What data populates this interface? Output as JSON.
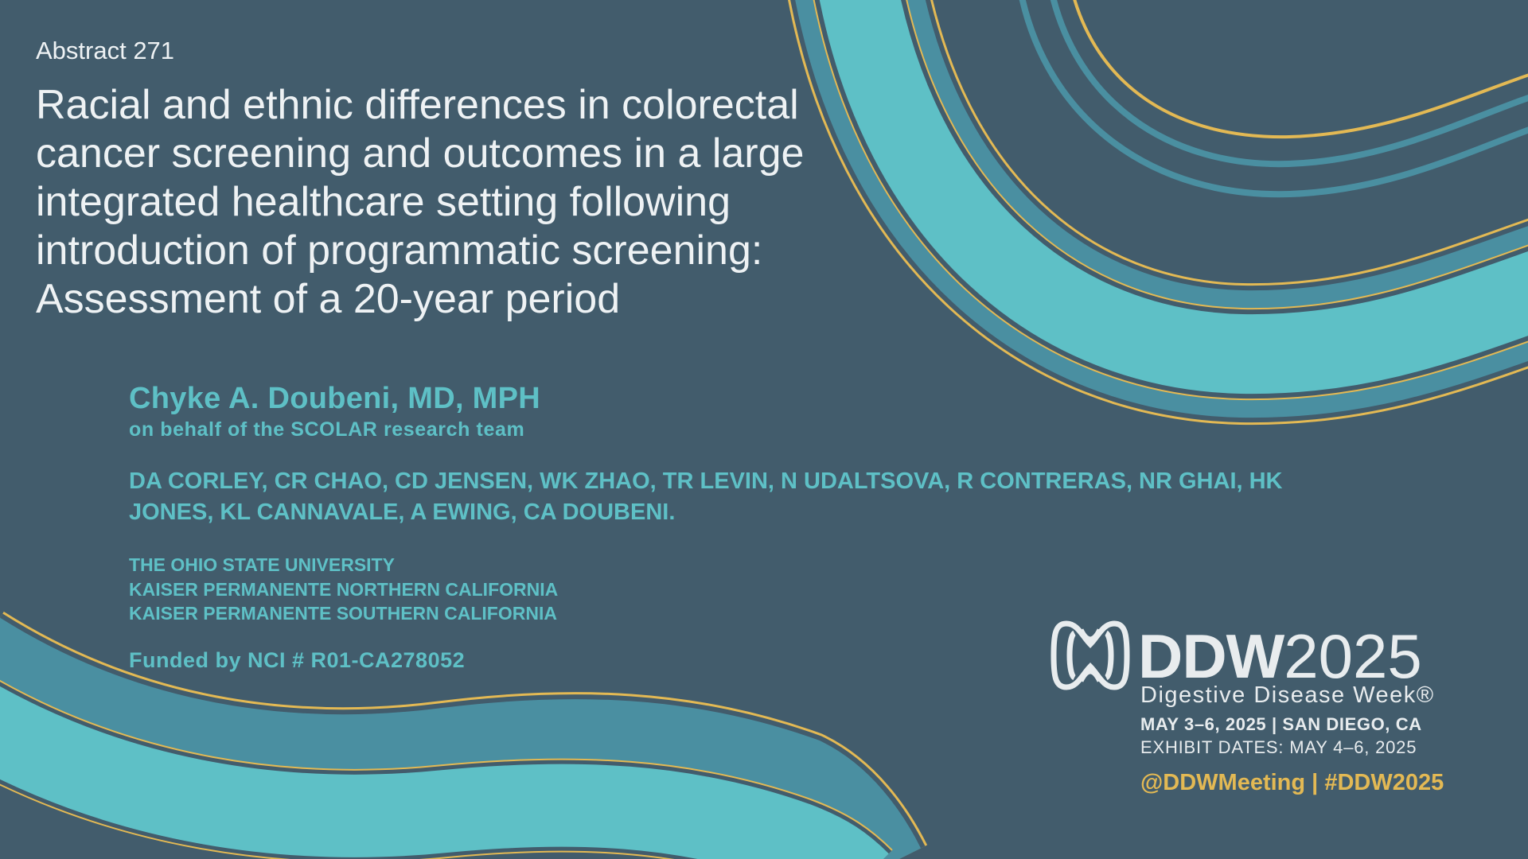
{
  "slide": {
    "abstract_label": "Abstract 271",
    "title_lines": [
      "Racial and ethnic differences in colorectal",
      "cancer screening and outcomes in a large",
      "integrated healthcare setting following",
      "introduction of programmatic screening:",
      "Assessment of a 20-year period"
    ],
    "presenter": "Chyke A. Doubeni, MD, MPH",
    "presenter_note": "on behalf of the SCOLAR research team",
    "authors_lines": [
      "DA CORLEY, CR CHAO, CD JENSEN, WK ZHAO, TR LEVIN, N UDALTSOVA, R CONTRERAS, NR GHAI, HK",
      "JONES, KL CANNAVALE, A EWING, CA DOUBENI."
    ],
    "affiliations": [
      "THE OHIO STATE UNIVERSITY",
      "KAISER PERMANENTE NORTHERN CALIFORNIA",
      "KAISER PERMANENTE SOUTHERN CALIFORNIA"
    ],
    "funding": "Funded by NCI # R01-CA278052"
  },
  "branding": {
    "logo_bold": "DDW",
    "logo_year": "2025",
    "subtitle": "Digestive Disease Week®",
    "dates": "MAY 3–6, 2025 | SAN DIEGO, CA",
    "exhibit": "EXHIBIT DATES: MAY 4–6, 2025",
    "social": "@DDWMeeting | #DDW2025",
    "logo_icon": "ddw-interlocking-rings-icon"
  },
  "colors": {
    "background": "#425c6c",
    "title_text": "#eef2f4",
    "accent_teal": "#5ec0c6",
    "wave_mid_blue": "#4a8fa1",
    "gold_line": "#e3b954"
  }
}
